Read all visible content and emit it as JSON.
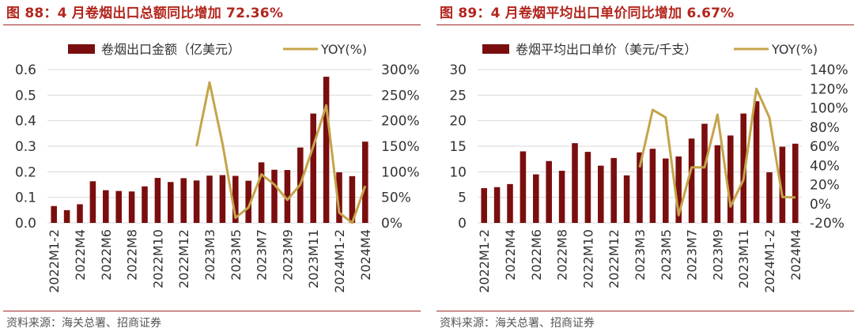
{
  "colors": {
    "bar": "#7a0e0e",
    "line": "#c4a44a",
    "title": "#b3261e",
    "grid": "#d9d9d9"
  },
  "chart_data": [
    {
      "type": "bar",
      "title": "图 88：4 月卷烟出口总额同比增加 72.36%",
      "legend": {
        "bar_label": "卷烟出口金额（亿美元）",
        "line_label": "YOY(%)",
        "placement": "top"
      },
      "categories": [
        "2022M1-2",
        "2022M3",
        "2022M4",
        "2022M5",
        "2022M6",
        "2022M7",
        "2022M8",
        "2022M9",
        "2022M10",
        "2022M11",
        "2022M12",
        "2023M1-2",
        "2023M3",
        "2023M4",
        "2023M5",
        "2023M6",
        "2023M7",
        "2023M8",
        "2023M9",
        "2023M10",
        "2023M11",
        "2023M12",
        "2024M1-2",
        "2024M3",
        "2024M4"
      ],
      "tick_labels": [
        "2022M1-2",
        "",
        "2022M4",
        "",
        "2022M6",
        "",
        "2022M8",
        "",
        "2022M10",
        "",
        "2022M12",
        "",
        "2023M3",
        "",
        "2023M5",
        "",
        "2023M7",
        "",
        "2023M9",
        "",
        "2023M11",
        "",
        "2024M1-2",
        "",
        "2024M4"
      ],
      "series": [
        {
          "name": "卷烟出口金额（亿美元）",
          "axis": "left",
          "kind": "bar",
          "values": [
            0.066,
            0.05,
            0.073,
            0.163,
            0.128,
            0.125,
            0.123,
            0.143,
            0.176,
            0.16,
            0.175,
            0.166,
            0.185,
            0.187,
            0.184,
            0.165,
            0.237,
            0.208,
            0.207,
            0.295,
            0.428,
            0.572,
            0.198,
            0.183,
            0.318
          ]
        },
        {
          "name": "YOY(%)",
          "axis": "right",
          "kind": "line",
          "values": [
            null,
            null,
            null,
            null,
            null,
            null,
            null,
            null,
            null,
            null,
            null,
            150,
            275,
            155,
            10,
            30,
            95,
            75,
            45,
            75,
            150,
            230,
            20,
            0,
            72.36
          ]
        }
      ],
      "ylim_left": [
        0,
        0.6
      ],
      "yticks_left": [
        0,
        0.1,
        0.2,
        0.3,
        0.4,
        0.5,
        0.6
      ],
      "ytick_labels_left": [
        "0.0",
        "0.1",
        "0.2",
        "0.3",
        "0.4",
        "0.5",
        "0.6"
      ],
      "ylim_right": [
        0,
        300
      ],
      "yticks_right": [
        0,
        50,
        100,
        150,
        200,
        250,
        300
      ],
      "ytick_labels_right": [
        "0%",
        "50%",
        "100%",
        "150%",
        "200%",
        "250%",
        "300%"
      ],
      "grid": true,
      "source": "资料来源：海关总署、招商证券"
    },
    {
      "type": "bar",
      "title": "图 89：4 月卷烟平均出口单价同比增加 6.67%",
      "legend": {
        "bar_label": "卷烟平均出口单价（美元/千支）",
        "line_label": "YOY(%)",
        "placement": "top"
      },
      "categories": [
        "2022M1-2",
        "2022M3",
        "2022M4",
        "2022M5",
        "2022M6",
        "2022M7",
        "2022M8",
        "2022M9",
        "2022M10",
        "2022M11",
        "2022M12",
        "2023M1-2",
        "2023M3",
        "2023M4",
        "2023M5",
        "2023M6",
        "2023M7",
        "2023M8",
        "2023M9",
        "2023M10",
        "2023M11",
        "2023M12",
        "2024M1-2",
        "2024M3",
        "2024M4"
      ],
      "tick_labels": [
        "2022M1-2",
        "",
        "2022M4",
        "",
        "2022M6",
        "",
        "2022M8",
        "",
        "2022M10",
        "",
        "2022M12",
        "",
        "2023M3",
        "",
        "2023M5",
        "",
        "2023M7",
        "",
        "2023M9",
        "",
        "2023M11",
        "",
        "2024M1-2",
        "",
        "2024M4"
      ],
      "series": [
        {
          "name": "卷烟平均出口单价（美元/千支）",
          "axis": "left",
          "kind": "bar",
          "values": [
            6.8,
            7.0,
            7.6,
            14.0,
            9.5,
            12.1,
            10.2,
            15.6,
            13.9,
            11.2,
            12.7,
            9.3,
            13.8,
            14.5,
            12.6,
            13.0,
            16.5,
            19.4,
            15.2,
            17.1,
            21.4,
            23.8,
            9.9,
            14.9,
            15.5
          ]
        },
        {
          "name": "YOY(%)",
          "axis": "right",
          "kind": "line",
          "values": [
            null,
            null,
            null,
            null,
            null,
            null,
            null,
            null,
            null,
            null,
            null,
            null,
            38,
            98,
            90,
            -12,
            38,
            38,
            93,
            -3,
            25,
            120,
            90,
            7,
            6.67
          ]
        }
      ],
      "ylim_left": [
        0,
        30
      ],
      "yticks_left": [
        0,
        5,
        10,
        15,
        20,
        25,
        30
      ],
      "ytick_labels_left": [
        "0",
        "5",
        "10",
        "15",
        "20",
        "25",
        "30"
      ],
      "ylim_right": [
        -20,
        140
      ],
      "yticks_right": [
        -20,
        0,
        20,
        40,
        60,
        80,
        100,
        120,
        140
      ],
      "ytick_labels_right": [
        "-20%",
        "0%",
        "20%",
        "40%",
        "60%",
        "80%",
        "100%",
        "120%",
        "140%"
      ],
      "grid": true,
      "source": "资料来源：海关总署、招商证券"
    }
  ]
}
